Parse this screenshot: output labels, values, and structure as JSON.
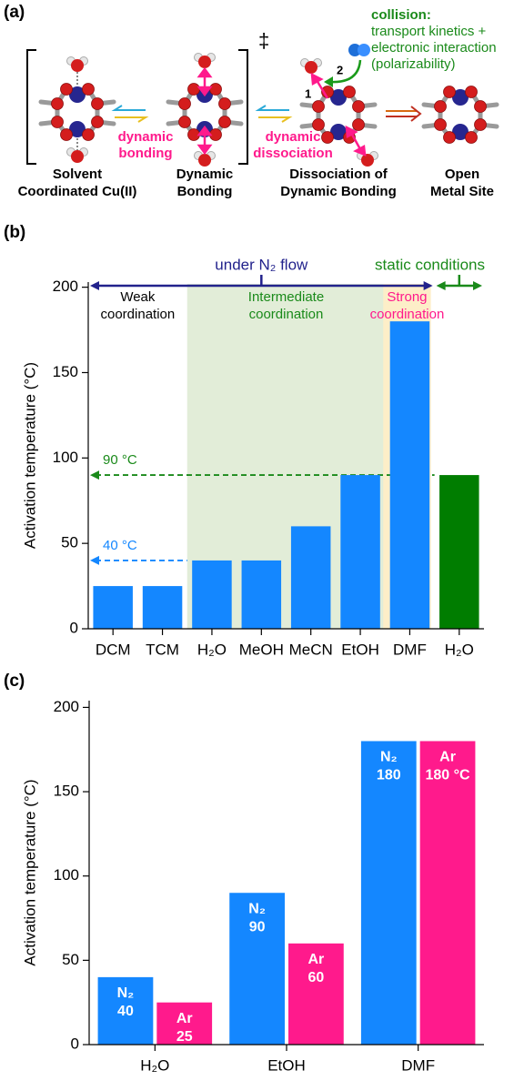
{
  "panel_a": {
    "label": "(a)",
    "double_dagger": "‡",
    "collision": {
      "title": "collision:",
      "lines": [
        "transport kinetics +",
        "electronic interaction",
        "(polarizability)"
      ]
    },
    "dynamic_bonding": [
      "dynamic",
      "bonding"
    ],
    "dynamic_dissociation": [
      "dynamic",
      "dissociation"
    ],
    "steps": [
      "1",
      "2"
    ],
    "captions": [
      [
        "Solvent",
        "Coordinated Cu(II)"
      ],
      [
        "Dynamic",
        "Bonding"
      ],
      [
        "Dissociation of",
        "Dynamic Bonding"
      ],
      [
        "Open",
        "Metal Site"
      ]
    ]
  },
  "chart_data": [
    {
      "panel_label": "(b)",
      "type": "bar",
      "y_label": "Activation temperature (°C)",
      "categories": [
        "DCM",
        "TCM",
        "H₂O",
        "MeOH",
        "MeCN",
        "EtOH",
        "DMF",
        "H₂O"
      ],
      "values": [
        25,
        25,
        40,
        40,
        60,
        90,
        180,
        90
      ],
      "colors": [
        "#1487ff",
        "#1487ff",
        "#1487ff",
        "#1487ff",
        "#1487ff",
        "#1487ff",
        "#1487ff",
        "#007d00"
      ],
      "ylim": [
        0,
        203
      ],
      "yticks": [
        0,
        50,
        100,
        150,
        200
      ],
      "conditions": [
        {
          "label": "under N₂ flow",
          "color": "#22228c"
        },
        {
          "label": "static conditions",
          "color": "#1a8a1a"
        }
      ],
      "regions": [
        {
          "label": [
            "Weak",
            "coordination"
          ],
          "text_color": "#000000"
        },
        {
          "label": [
            "Intermediate",
            "coordination"
          ],
          "text_color": "#1a8a1a",
          "fill": "#e2edd8"
        },
        {
          "label": [
            "Strong",
            "coordination"
          ],
          "text_color": "#ff1a8c",
          "fill": "#fdeec8"
        }
      ],
      "reference_lines": [
        {
          "label": "90 °C",
          "value": 90,
          "color": "#1a8a1a"
        },
        {
          "label": "40 °C",
          "value": 40,
          "color": "#1487ff"
        }
      ]
    },
    {
      "panel_label": "(c)",
      "type": "grouped_bar",
      "y_label": "Activation temperature (°C)",
      "categories": [
        "H₂O",
        "EtOH",
        "DMF"
      ],
      "series": [
        {
          "name": "N₂",
          "color": "#1487ff",
          "values": [
            40,
            90,
            180
          ],
          "value_labels": [
            "40",
            "90",
            "180"
          ]
        },
        {
          "name": "Ar",
          "color": "#ff1a8c",
          "values": [
            25,
            60,
            180
          ],
          "value_labels": [
            "25",
            "60",
            "180 °C"
          ]
        }
      ],
      "ylim": [
        0,
        204
      ],
      "yticks": [
        0,
        50,
        100,
        150,
        200
      ]
    }
  ]
}
